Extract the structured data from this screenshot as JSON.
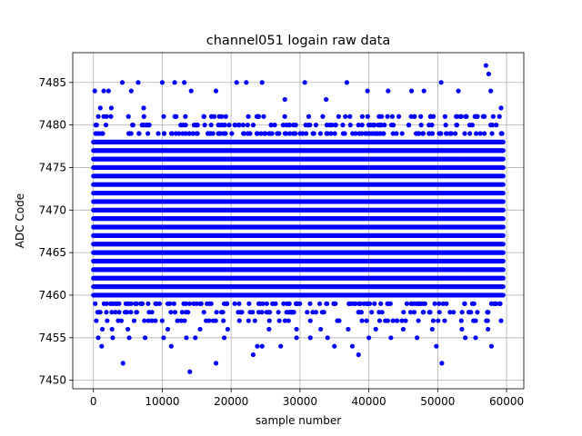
{
  "chart_data": {
    "type": "scatter",
    "title": "channel051 logain raw data",
    "xlabel": "sample number",
    "ylabel": "ADC Code",
    "xlim": [
      -3000,
      62500
    ],
    "ylim": [
      7449,
      7488.5
    ],
    "xticks": [
      0,
      10000,
      20000,
      30000,
      40000,
      50000,
      60000
    ],
    "xtick_labels": [
      "0",
      "10000",
      "20000",
      "30000",
      "40000",
      "50000",
      "60000"
    ],
    "yticks": [
      7450,
      7455,
      7460,
      7465,
      7470,
      7475,
      7480,
      7485
    ],
    "ytick_labels": [
      "7450",
      "7455",
      "7460",
      "7465",
      "7470",
      "7475",
      "7480",
      "7485"
    ],
    "grid": true,
    "marker_color": "#0000ff",
    "series": [
      {
        "name": "",
        "dense_band": {
          "x_range": [
            0,
            59500
          ],
          "y_range": [
            7460,
            7478
          ]
        },
        "outliers": [
          [
            200,
            7484
          ],
          [
            700,
            7481
          ],
          [
            1000,
            7482
          ],
          [
            1500,
            7484
          ],
          [
            2200,
            7484
          ],
          [
            2600,
            7482
          ],
          [
            4200,
            7485
          ],
          [
            5500,
            7484
          ],
          [
            6500,
            7485
          ],
          [
            7300,
            7482
          ],
          [
            10000,
            7485
          ],
          [
            11800,
            7485
          ],
          [
            13200,
            7485
          ],
          [
            14200,
            7484
          ],
          [
            17800,
            7484
          ],
          [
            20800,
            7485
          ],
          [
            22200,
            7485
          ],
          [
            24500,
            7485
          ],
          [
            27800,
            7483
          ],
          [
            30700,
            7485
          ],
          [
            33800,
            7483
          ],
          [
            36800,
            7485
          ],
          [
            39800,
            7484
          ],
          [
            42800,
            7484
          ],
          [
            46200,
            7484
          ],
          [
            48000,
            7484
          ],
          [
            50500,
            7485
          ],
          [
            53000,
            7484
          ],
          [
            57000,
            7487
          ],
          [
            57400,
            7486
          ],
          [
            57700,
            7484
          ],
          [
            59200,
            7482
          ],
          [
            600,
            7458
          ],
          [
            1300,
            7456
          ],
          [
            2000,
            7457
          ],
          [
            2700,
            7456
          ],
          [
            3600,
            7457
          ],
          [
            5000,
            7456
          ],
          [
            6300,
            7458
          ],
          [
            9000,
            7457
          ],
          [
            10800,
            7456
          ],
          [
            12200,
            7457
          ],
          [
            15500,
            7456
          ],
          [
            16800,
            7457
          ],
          [
            19500,
            7456
          ],
          [
            21200,
            7457
          ],
          [
            25500,
            7456
          ],
          [
            27000,
            7457
          ],
          [
            29500,
            7456
          ],
          [
            31500,
            7457
          ],
          [
            33000,
            7456
          ],
          [
            35500,
            7457
          ],
          [
            37000,
            7456
          ],
          [
            39000,
            7457
          ],
          [
            41000,
            7456
          ],
          [
            43500,
            7457
          ],
          [
            45000,
            7456
          ],
          [
            47200,
            7457
          ],
          [
            49200,
            7456
          ],
          [
            51000,
            7457
          ],
          [
            53500,
            7456
          ],
          [
            55500,
            7457
          ],
          [
            57300,
            7456
          ],
          [
            59200,
            7457
          ],
          [
            700,
            7455
          ],
          [
            1200,
            7454
          ],
          [
            2800,
            7455
          ],
          [
            4300,
            7452
          ],
          [
            5200,
            7455
          ],
          [
            7500,
            7455
          ],
          [
            10200,
            7455
          ],
          [
            11300,
            7454
          ],
          [
            13500,
            7455
          ],
          [
            14000,
            7451
          ],
          [
            14800,
            7455
          ],
          [
            17800,
            7452
          ],
          [
            19000,
            7455
          ],
          [
            23200,
            7453
          ],
          [
            23800,
            7454
          ],
          [
            24500,
            7454
          ],
          [
            27200,
            7454
          ],
          [
            29500,
            7455
          ],
          [
            31500,
            7455
          ],
          [
            34000,
            7455
          ],
          [
            35000,
            7454
          ],
          [
            37600,
            7454
          ],
          [
            38500,
            7453
          ],
          [
            40000,
            7455
          ],
          [
            43200,
            7455
          ],
          [
            47000,
            7455
          ],
          [
            49800,
            7454
          ],
          [
            50600,
            7452
          ],
          [
            54000,
            7455
          ],
          [
            55500,
            7455
          ],
          [
            57800,
            7454
          ]
        ]
      }
    ]
  }
}
